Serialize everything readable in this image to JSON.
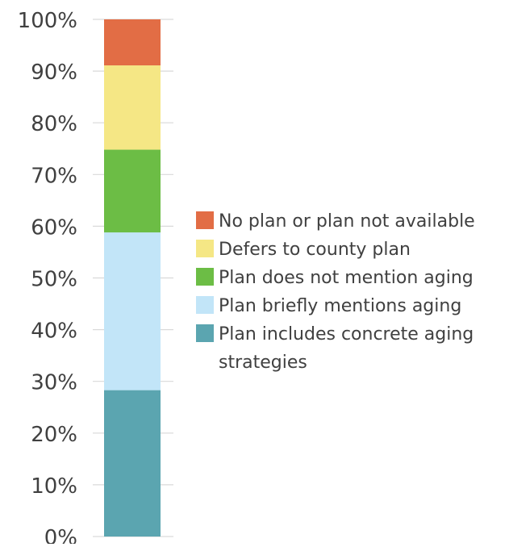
{
  "chart_data": {
    "type": "bar",
    "stacked": true,
    "categories": [
      ""
    ],
    "y_ticks": [
      "0%",
      "10%",
      "20%",
      "30%",
      "40%",
      "50%",
      "60%",
      "70%",
      "80%",
      "90%",
      "100%"
    ],
    "ylim": [
      0,
      100
    ],
    "grid": false,
    "legend_position": "right",
    "series": [
      {
        "name": "Plan includes concrete aging strategies",
        "values": [
          28.3
        ],
        "color": "#5ba5b0"
      },
      {
        "name": "Plan briefly mentions aging",
        "values": [
          30.5
        ],
        "color": "#c2e5f8"
      },
      {
        "name": "Plan does not mention aging",
        "values": [
          16.0
        ],
        "color": "#6cbd45"
      },
      {
        "name": "Defers to county plan",
        "values": [
          16.3
        ],
        "color": "#f5e785"
      },
      {
        "name": "No plan or plan not available",
        "values": [
          8.9
        ],
        "color": "#e26d45"
      }
    ],
    "legend_order": [
      "No plan or plan not available",
      "Defers to county plan",
      "Plan does not mention aging",
      "Plan briefly mentions aging",
      "Plan includes concrete aging strategies"
    ],
    "legend_lines": {
      "Plan includes concrete aging strategies": [
        "Plan includes concrete aging",
        "strategies"
      ]
    }
  }
}
